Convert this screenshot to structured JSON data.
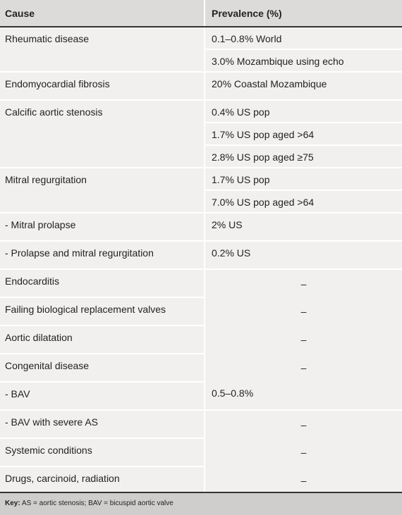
{
  "table": {
    "headers": {
      "cause": "Cause",
      "prevalence": "Prevalence (%)"
    },
    "rows": [
      {
        "cause": "Rheumatic disease",
        "values": [
          "0.1–0.8% World",
          "3.0% Mozambique using echo"
        ]
      },
      {
        "cause": "Endomyocardial fibrosis",
        "values": [
          "20% Coastal Mozambique"
        ]
      },
      {
        "cause": "Calcific aortic stenosis",
        "values": [
          "0.4% US pop",
          "1.7% US pop aged >64",
          "2.8% US pop aged ≥75"
        ]
      },
      {
        "cause": "Mitral regurgitation",
        "values": [
          "1.7% US pop",
          "7.0% US pop aged >64"
        ]
      },
      {
        "cause": "- Mitral prolapse",
        "values": [
          "2% US"
        ]
      },
      {
        "cause": "- Prolapse and mitral regurgitation",
        "values": [
          "0.2% US"
        ]
      },
      {
        "cause": "Endocarditis",
        "values": [
          "–"
        ]
      },
      {
        "cause": "Failing biological replacement valves",
        "values": [
          "–"
        ]
      },
      {
        "cause": "Aortic dilatation",
        "values": [
          "–"
        ]
      },
      {
        "cause": "Congenital disease",
        "values": [
          "–"
        ]
      },
      {
        "cause": "- BAV",
        "values": [
          "0.5–0.8%"
        ]
      },
      {
        "cause": "- BAV with severe AS",
        "values": [
          "–"
        ]
      },
      {
        "cause": "Systemic conditions",
        "values": [
          "–"
        ]
      },
      {
        "cause": "Drugs, carcinoid, radiation",
        "values": [
          "–"
        ]
      }
    ]
  },
  "key": {
    "label": "Key:",
    "text": "AS = aortic stenosis; BAV = bicuspid aortic valve"
  },
  "colors": {
    "header_bg": "#dcdbd9",
    "cell_bg": "#f1f0ee",
    "key_bg": "#cfcecc",
    "rule": "#333333"
  }
}
